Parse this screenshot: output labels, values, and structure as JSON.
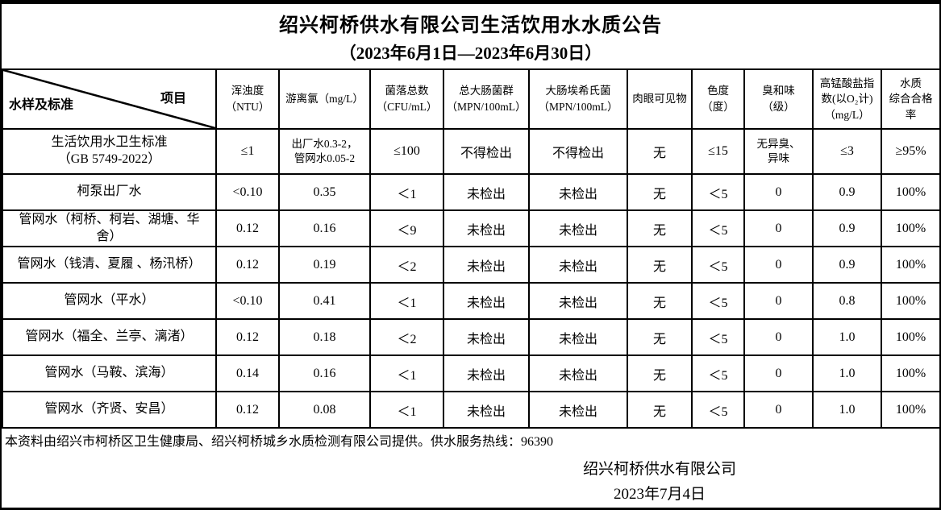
{
  "page": {
    "title": "绍兴柯桥供水有限公司生活饮用水水质公告",
    "subtitle": "（2023年6月1日—2023年6月30日）"
  },
  "table": {
    "corner": {
      "top_label": "项目",
      "bottom_label": "水样及标准"
    },
    "columns": [
      "浑浊度\n（NTU）",
      "游离氯（mg/L）",
      "菌落总数\n（CFU/mL）",
      "总大肠菌群\n（MPN/100mL）",
      "大肠埃希氏菌\n（MPN/100mL）",
      "肉眼可见物",
      "色度\n（度）",
      "臭和味\n（级）",
      "高锰酸盐指数(以O₂计)\n（mg/L）",
      "水质\n综合合格率"
    ],
    "rows": [
      {
        "label": "生活饮用水卫生标准\n（GB 5749-2022）",
        "values": [
          "≤1",
          "出厂水0.3-2，\n管网水0.05-2",
          "≤100",
          "不得检出",
          "不得检出",
          "无",
          "≤15",
          "无异臭、\n异味",
          "≤3",
          "≥95%"
        ]
      },
      {
        "label": "柯泵出厂水",
        "values": [
          "<0.10",
          "0.35",
          "＜1",
          "未检出",
          "未检出",
          "无",
          "＜5",
          "0",
          "0.9",
          "100%"
        ]
      },
      {
        "label": "管网水（柯桥、柯岩、湖塘、华舍）",
        "values": [
          "0.12",
          "0.16",
          "＜9",
          "未检出",
          "未检出",
          "无",
          "＜5",
          "0",
          "0.9",
          "100%"
        ]
      },
      {
        "label": "管网水（钱清、夏履 、杨汛桥）",
        "values": [
          "0.12",
          "0.19",
          "＜2",
          "未检出",
          "未检出",
          "无",
          "＜5",
          "0",
          "0.9",
          "100%"
        ]
      },
      {
        "label": "管网水（平水）",
        "values": [
          "<0.10",
          "0.41",
          "＜1",
          "未检出",
          "未检出",
          "无",
          "＜5",
          "0",
          "0.8",
          "100%"
        ]
      },
      {
        "label": "管网水（福全、兰亭、漓渚）",
        "values": [
          "0.12",
          "0.18",
          "＜2",
          "未检出",
          "未检出",
          "无",
          "＜5",
          "0",
          "1.0",
          "100%"
        ]
      },
      {
        "label": "管网水（马鞍、滨海）",
        "values": [
          "0.14",
          "0.16",
          "＜1",
          "未检出",
          "未检出",
          "无",
          "＜5",
          "0",
          "1.0",
          "100%"
        ]
      },
      {
        "label": "管网水（齐贤、安昌）",
        "values": [
          "0.12",
          "0.08",
          "＜1",
          "未检出",
          "未检出",
          "无",
          "＜5",
          "0",
          "1.0",
          "100%"
        ]
      }
    ]
  },
  "footer": {
    "note": "本资料由绍兴市柯桥区卫生健康局、绍兴柯桥城乡水质检测有限公司提供。供水服务热线：96390",
    "company": "绍兴柯桥供水有限公司",
    "date": "2023年7月4日"
  },
  "colors": {
    "border": "#000000",
    "background": "#ffffff",
    "text": "#000000"
  }
}
